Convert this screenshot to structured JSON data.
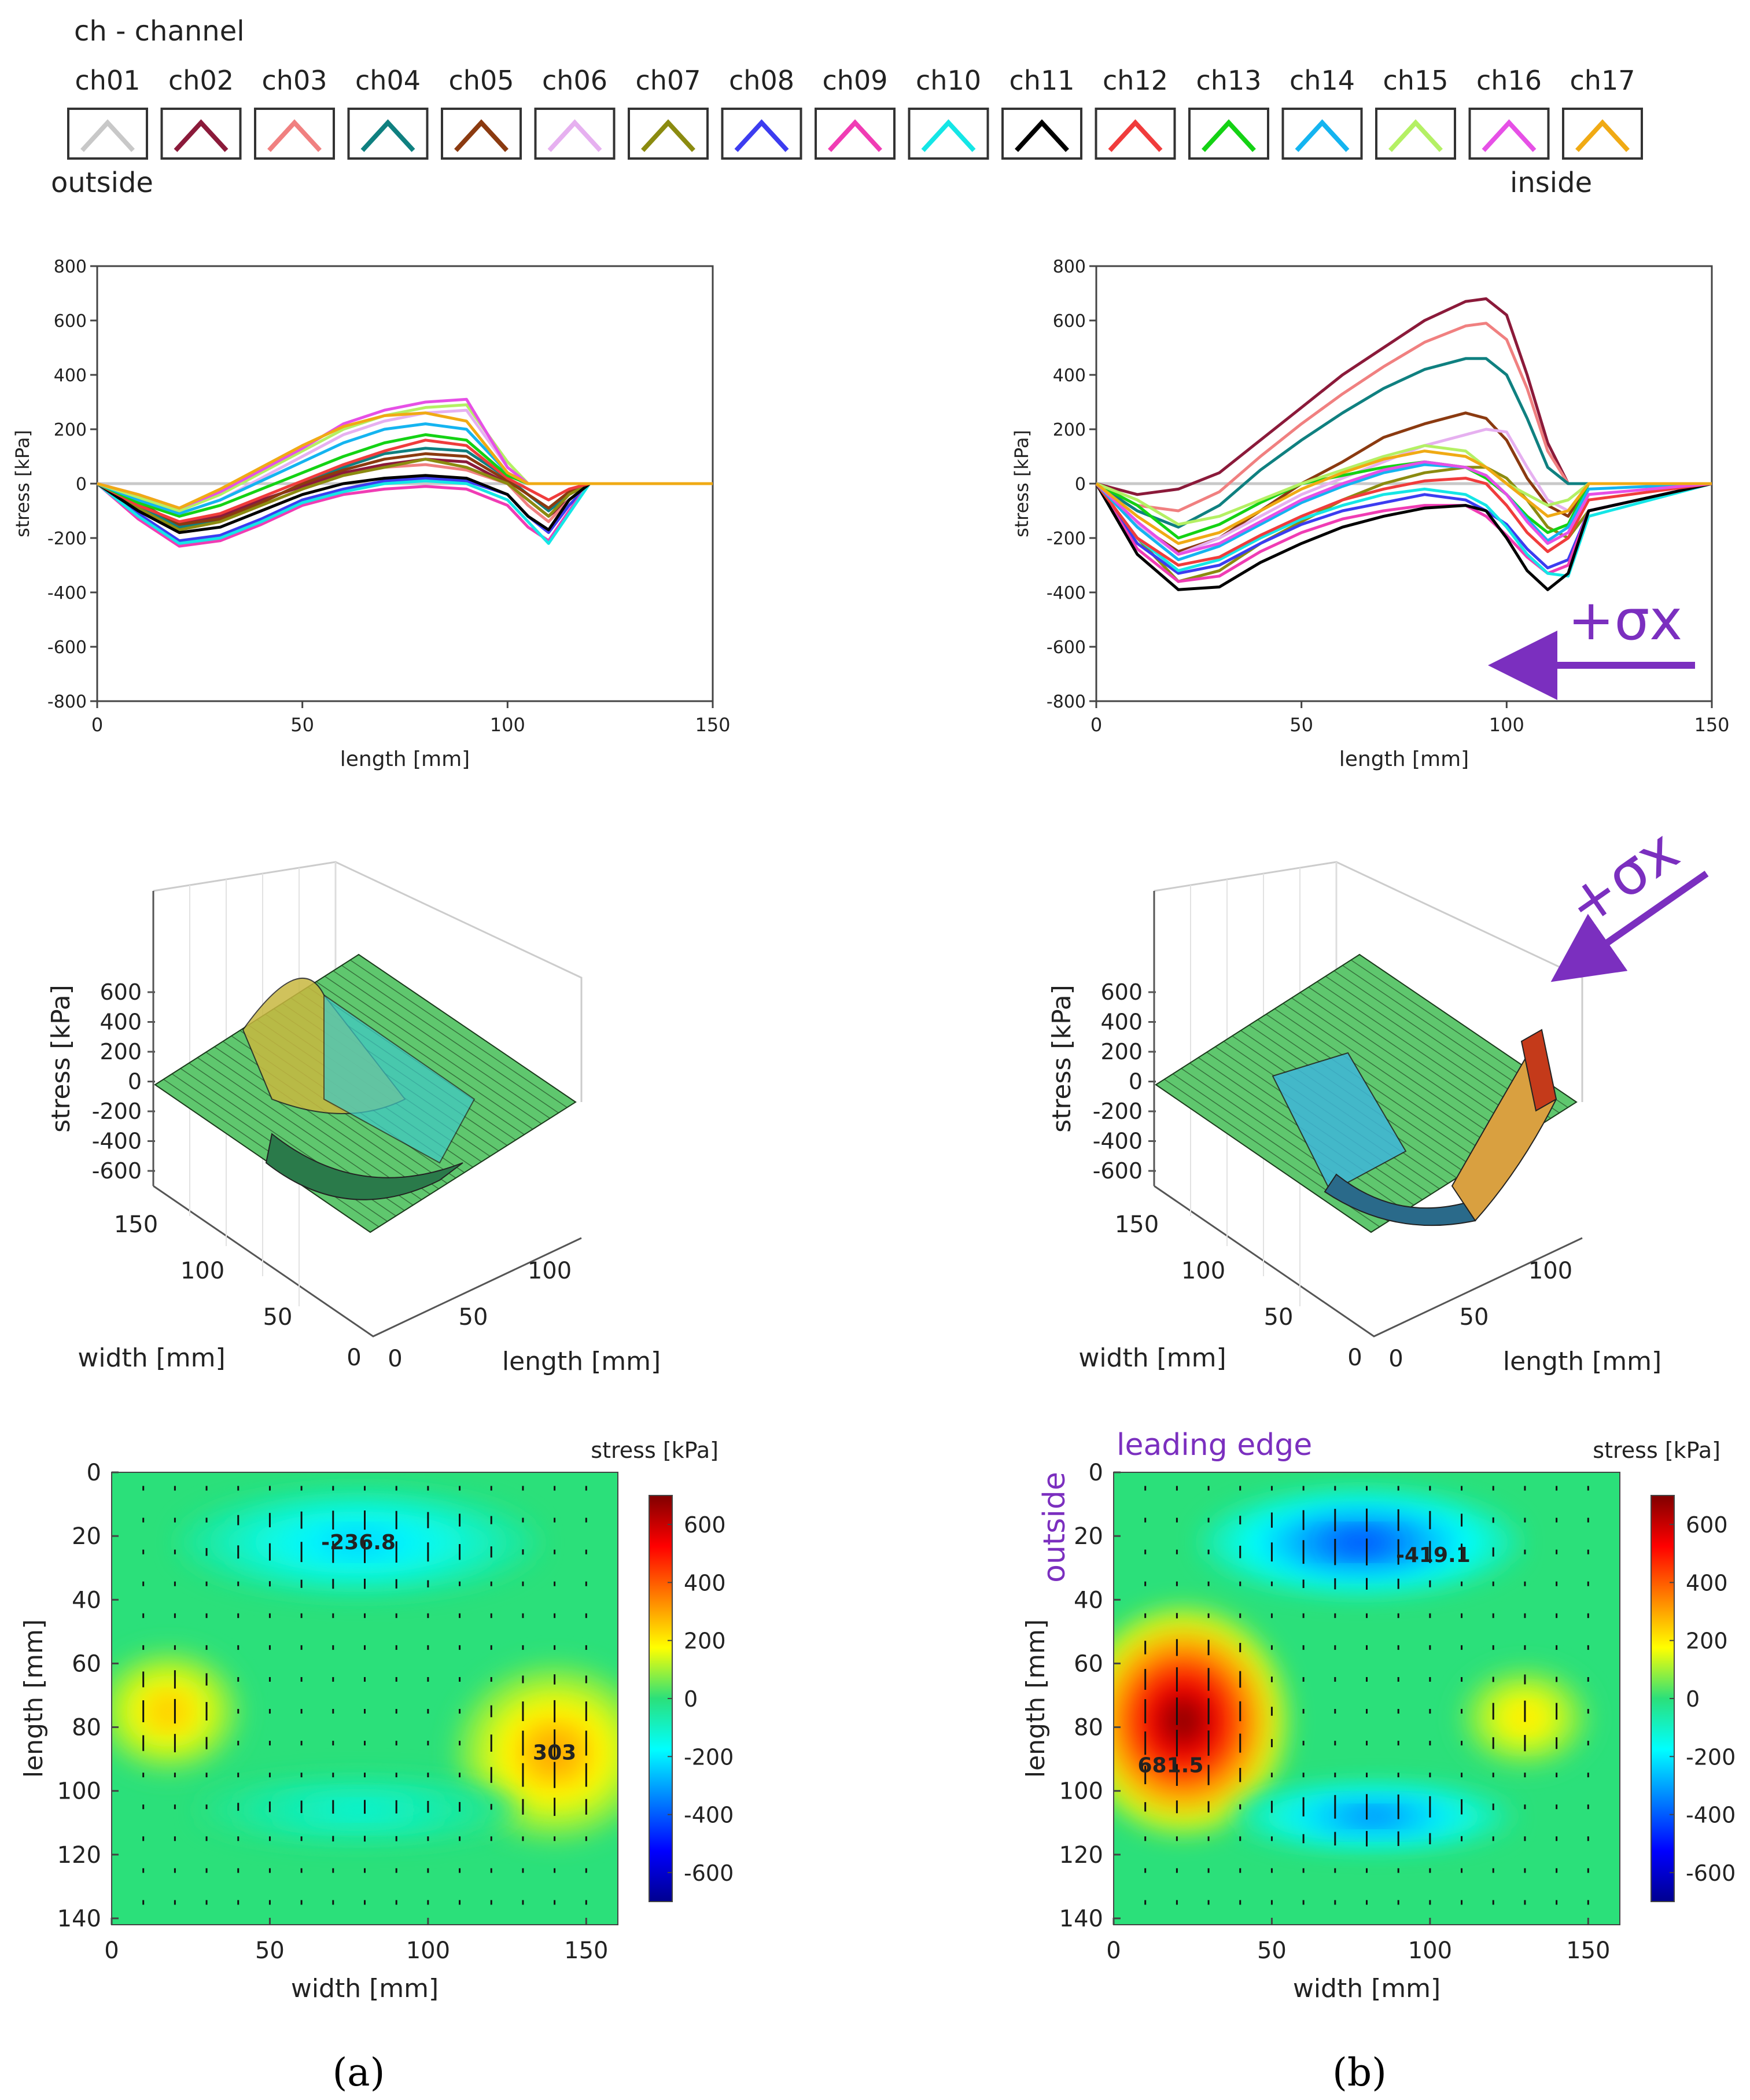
{
  "legend": {
    "title": "ch - channel",
    "outside": "outside",
    "inside": "inside",
    "channels": [
      {
        "label": "ch01",
        "color": "#c8c8c8"
      },
      {
        "label": "ch02",
        "color": "#8b1a3a"
      },
      {
        "label": "ch03",
        "color": "#f08080"
      },
      {
        "label": "ch04",
        "color": "#0f8080"
      },
      {
        "label": "ch05",
        "color": "#8b3a10"
      },
      {
        "label": "ch06",
        "color": "#e6b0f0"
      },
      {
        "label": "ch07",
        "color": "#8b8b10"
      },
      {
        "label": "ch08",
        "color": "#3c3cf0"
      },
      {
        "label": "ch09",
        "color": "#f03cb4"
      },
      {
        "label": "ch10",
        "color": "#14e6e6"
      },
      {
        "label": "ch11",
        "color": "#000000"
      },
      {
        "label": "ch12",
        "color": "#f03c3c"
      },
      {
        "label": "ch13",
        "color": "#14d214"
      },
      {
        "label": "ch14",
        "color": "#14b4f0"
      },
      {
        "label": "ch15",
        "color": "#b4f064"
      },
      {
        "label": "ch16",
        "color": "#e650e6"
      },
      {
        "label": "ch17",
        "color": "#f0aa14"
      }
    ]
  },
  "annotations": {
    "sigma_line": "+σx",
    "sigma_3d": "+σx",
    "leading_edge": "leading edge",
    "outside_vertical": "outside"
  },
  "panel_labels": {
    "a": "(a)",
    "b": "(b)"
  },
  "chart_data": [
    {
      "id": "line_a",
      "type": "line",
      "xlabel": "length [mm]",
      "ylabel": "stress [kPa]",
      "xlim": [
        0,
        150
      ],
      "ylim": [
        -800,
        800
      ],
      "xticks": [
        0,
        50,
        100,
        150
      ],
      "yticks": [
        800,
        600,
        400,
        200,
        0,
        -200,
        -400,
        -600,
        -800
      ],
      "series_note": "one line per channel ch01..ch17, values in kPa at x (mm)",
      "x": [
        0,
        10,
        20,
        30,
        40,
        50,
        60,
        70,
        80,
        90,
        100,
        105,
        110,
        115,
        120,
        150
      ],
      "series": [
        {
          "name": "ch01",
          "values": [
            0,
            0,
            0,
            0,
            0,
            0,
            0,
            0,
            0,
            0,
            0,
            0,
            0,
            0,
            0,
            0
          ]
        },
        {
          "name": "ch02",
          "values": [
            0,
            -80,
            -150,
            -120,
            -60,
            -10,
            40,
            70,
            90,
            80,
            0,
            -60,
            -120,
            -60,
            0,
            0
          ]
        },
        {
          "name": "ch03",
          "values": [
            0,
            -90,
            -170,
            -140,
            -80,
            -20,
            30,
            60,
            70,
            50,
            0,
            -80,
            -140,
            -60,
            0,
            0
          ]
        },
        {
          "name": "ch04",
          "values": [
            0,
            -80,
            -160,
            -130,
            -70,
            0,
            60,
            110,
            130,
            120,
            20,
            -40,
            -100,
            -40,
            0,
            0
          ]
        },
        {
          "name": "ch05",
          "values": [
            0,
            -70,
            -150,
            -130,
            -70,
            0,
            50,
            90,
            110,
            100,
            10,
            -40,
            -90,
            -30,
            0,
            0
          ]
        },
        {
          "name": "ch06",
          "values": [
            0,
            -50,
            -110,
            -60,
            20,
            100,
            180,
            230,
            260,
            270,
            60,
            0,
            0,
            0,
            0,
            0
          ]
        },
        {
          "name": "ch07",
          "values": [
            0,
            -90,
            -170,
            -140,
            -80,
            -20,
            30,
            60,
            90,
            60,
            0,
            -60,
            -120,
            -40,
            0,
            0
          ]
        },
        {
          "name": "ch08",
          "values": [
            0,
            -110,
            -210,
            -190,
            -130,
            -60,
            -20,
            10,
            20,
            10,
            -40,
            -120,
            -180,
            -80,
            0,
            0
          ]
        },
        {
          "name": "ch09",
          "values": [
            0,
            -130,
            -230,
            -210,
            -150,
            -80,
            -40,
            -20,
            -10,
            -20,
            -80,
            -160,
            -210,
            -100,
            0,
            0
          ]
        },
        {
          "name": "ch10",
          "values": [
            0,
            -120,
            -220,
            -200,
            -140,
            -70,
            -30,
            0,
            10,
            0,
            -60,
            -140,
            -220,
            -110,
            0,
            0
          ]
        },
        {
          "name": "ch11",
          "values": [
            0,
            -100,
            -180,
            -160,
            -100,
            -40,
            0,
            20,
            30,
            20,
            -40,
            -120,
            -170,
            -60,
            0,
            0
          ]
        },
        {
          "name": "ch12",
          "values": [
            0,
            -80,
            -140,
            -110,
            -50,
            10,
            70,
            120,
            160,
            140,
            20,
            -20,
            -60,
            -20,
            0,
            0
          ]
        },
        {
          "name": "ch13",
          "values": [
            0,
            -70,
            -120,
            -80,
            -20,
            40,
            100,
            150,
            180,
            160,
            30,
            0,
            0,
            0,
            0,
            0
          ]
        },
        {
          "name": "ch14",
          "values": [
            0,
            -60,
            -110,
            -60,
            10,
            80,
            150,
            200,
            220,
            200,
            40,
            0,
            0,
            0,
            0,
            0
          ]
        },
        {
          "name": "ch15",
          "values": [
            0,
            -50,
            -100,
            -40,
            40,
            120,
            200,
            250,
            280,
            290,
            80,
            0,
            0,
            0,
            0,
            0
          ]
        },
        {
          "name": "ch16",
          "values": [
            0,
            -40,
            -90,
            -30,
            50,
            130,
            220,
            270,
            300,
            310,
            60,
            0,
            0,
            0,
            0,
            0
          ]
        },
        {
          "name": "ch17",
          "values": [
            0,
            -40,
            -90,
            -20,
            60,
            140,
            210,
            250,
            260,
            230,
            40,
            0,
            0,
            0,
            0,
            0
          ]
        }
      ]
    },
    {
      "id": "line_b",
      "type": "line",
      "xlabel": "length [mm]",
      "ylabel": "stress [kPa]",
      "xlim": [
        0,
        150
      ],
      "ylim": [
        -800,
        800
      ],
      "xticks": [
        0,
        50,
        100,
        150
      ],
      "yticks": [
        800,
        600,
        400,
        200,
        0,
        -200,
        -400,
        -600,
        -800
      ],
      "x": [
        0,
        10,
        20,
        30,
        40,
        50,
        60,
        70,
        80,
        90,
        95,
        100,
        105,
        110,
        115,
        120,
        150
      ],
      "series": [
        {
          "name": "ch01",
          "values": [
            0,
            0,
            0,
            0,
            0,
            0,
            0,
            0,
            0,
            0,
            0,
            0,
            0,
            0,
            0,
            0,
            0
          ]
        },
        {
          "name": "ch02",
          "values": [
            0,
            -40,
            -20,
            40,
            160,
            280,
            400,
            500,
            600,
            670,
            680,
            620,
            400,
            150,
            0,
            0,
            0
          ]
        },
        {
          "name": "ch03",
          "values": [
            0,
            -80,
            -100,
            -30,
            100,
            220,
            330,
            430,
            520,
            580,
            590,
            530,
            350,
            120,
            0,
            0,
            0
          ]
        },
        {
          "name": "ch04",
          "values": [
            0,
            -100,
            -160,
            -80,
            50,
            160,
            260,
            350,
            420,
            460,
            460,
            400,
            240,
            60,
            0,
            0,
            0
          ]
        },
        {
          "name": "ch05",
          "values": [
            0,
            -150,
            -250,
            -200,
            -100,
            0,
            80,
            170,
            220,
            260,
            240,
            160,
            20,
            -80,
            -120,
            0,
            0
          ]
        },
        {
          "name": "ch06",
          "values": [
            0,
            -150,
            -260,
            -200,
            -120,
            -40,
            20,
            80,
            140,
            180,
            200,
            190,
            60,
            -60,
            -100,
            0,
            0
          ]
        },
        {
          "name": "ch07",
          "values": [
            0,
            -200,
            -360,
            -320,
            -220,
            -140,
            -60,
            0,
            40,
            60,
            60,
            20,
            -60,
            -160,
            -200,
            -100,
            0
          ]
        },
        {
          "name": "ch08",
          "values": [
            0,
            -220,
            -330,
            -300,
            -220,
            -150,
            -100,
            -70,
            -40,
            -60,
            -100,
            -150,
            -240,
            -310,
            -280,
            -100,
            0
          ]
        },
        {
          "name": "ch09",
          "values": [
            0,
            -240,
            -360,
            -340,
            -250,
            -180,
            -130,
            -100,
            -80,
            -80,
            -120,
            -190,
            -270,
            -330,
            -300,
            -100,
            0
          ]
        },
        {
          "name": "ch10",
          "values": [
            0,
            -200,
            -320,
            -280,
            -200,
            -130,
            -80,
            -40,
            -20,
            -40,
            -80,
            -160,
            -260,
            -330,
            -340,
            -120,
            0
          ]
        },
        {
          "name": "ch11",
          "values": [
            0,
            -260,
            -390,
            -380,
            -290,
            -220,
            -160,
            -120,
            -90,
            -80,
            -100,
            -200,
            -320,
            -390,
            -330,
            -100,
            0
          ]
        },
        {
          "name": "ch12",
          "values": [
            0,
            -200,
            -300,
            -270,
            -190,
            -120,
            -60,
            -20,
            10,
            20,
            0,
            -80,
            -180,
            -250,
            -200,
            -60,
            0
          ]
        },
        {
          "name": "ch13",
          "values": [
            0,
            -80,
            -200,
            -150,
            -70,
            0,
            30,
            60,
            80,
            60,
            20,
            -40,
            -120,
            -180,
            -150,
            0,
            0
          ]
        },
        {
          "name": "ch14",
          "values": [
            0,
            -160,
            -280,
            -230,
            -150,
            -70,
            -10,
            40,
            70,
            60,
            30,
            -40,
            -130,
            -210,
            -160,
            -20,
            0
          ]
        },
        {
          "name": "ch15",
          "values": [
            0,
            -60,
            -150,
            -120,
            -60,
            0,
            50,
            100,
            140,
            120,
            60,
            0,
            -40,
            -80,
            -60,
            0,
            0
          ]
        },
        {
          "name": "ch16",
          "values": [
            0,
            -140,
            -260,
            -220,
            -140,
            -60,
            0,
            50,
            80,
            60,
            30,
            -40,
            -140,
            -220,
            -180,
            -40,
            0
          ]
        },
        {
          "name": "ch17",
          "values": [
            0,
            -120,
            -220,
            -180,
            -100,
            -20,
            40,
            90,
            120,
            100,
            60,
            0,
            -60,
            -120,
            -100,
            0,
            0
          ]
        }
      ]
    },
    {
      "id": "surface_a",
      "type": "surface3d",
      "zlabel": "stress [kPa]",
      "xlabel": "length [mm]",
      "ylabel": "width [mm]",
      "zticks": [
        600,
        400,
        200,
        0,
        -200,
        -400,
        -600
      ],
      "width_ticks": [
        "150",
        "100",
        "50",
        "0"
      ],
      "length_ticks": [
        "0",
        "50",
        "100"
      ]
    },
    {
      "id": "surface_b",
      "type": "surface3d",
      "zlabel": "stress [kPa]",
      "xlabel": "length [mm]",
      "ylabel": "width [mm]",
      "zticks": [
        600,
        400,
        200,
        0,
        -200,
        -400,
        -600
      ],
      "width_ticks": [
        "150",
        "100",
        "50",
        "0"
      ],
      "length_ticks": [
        "0",
        "50",
        "100"
      ]
    },
    {
      "id": "heatmap_a",
      "type": "heatmap",
      "xlabel": "width [mm]",
      "ylabel": "length [mm]",
      "xticks": [
        0,
        50,
        100,
        150
      ],
      "yticks": [
        0,
        20,
        40,
        60,
        80,
        100,
        120,
        140
      ],
      "xlim": [
        0,
        160
      ],
      "ylim": [
        0,
        142
      ],
      "colorbar_title": "stress [kPa]",
      "colorbar_ticks": [
        600,
        400,
        200,
        0,
        -200,
        -400,
        -600
      ],
      "clim": [
        -700,
        700
      ],
      "blobs": [
        {
          "x": 78,
          "y": 22,
          "value": -236.8,
          "rx": 45,
          "ry": 13
        },
        {
          "x": 140,
          "y": 88,
          "value": 303,
          "rx": 25,
          "ry": 22
        },
        {
          "x": 18,
          "y": 75,
          "value": 260,
          "rx": 18,
          "ry": 15
        },
        {
          "x": 78,
          "y": 106,
          "value": -120,
          "rx": 40,
          "ry": 8
        }
      ],
      "labels": [
        {
          "x": 78,
          "y": 22,
          "text": "-236.8"
        },
        {
          "x": 140,
          "y": 88,
          "text": "303"
        }
      ]
    },
    {
      "id": "heatmap_b",
      "type": "heatmap",
      "xlabel": "width [mm]",
      "ylabel": "length [mm]",
      "xticks": [
        0,
        50,
        100,
        150
      ],
      "yticks": [
        0,
        20,
        40,
        60,
        80,
        100,
        120,
        140
      ],
      "xlim": [
        0,
        160
      ],
      "ylim": [
        0,
        142
      ],
      "colorbar_title": "stress [kPa]",
      "colorbar_ticks": [
        600,
        400,
        200,
        0,
        -200,
        -400,
        -600
      ],
      "clim": [
        -700,
        700
      ],
      "blobs": [
        {
          "x": 22,
          "y": 78,
          "value": 681.5,
          "rx": 26,
          "ry": 28
        },
        {
          "x": 78,
          "y": 22,
          "value": -419.1,
          "rx": 40,
          "ry": 13
        },
        {
          "x": 82,
          "y": 108,
          "value": -350,
          "rx": 35,
          "ry": 8
        },
        {
          "x": 130,
          "y": 77,
          "value": 220,
          "rx": 16,
          "ry": 12
        }
      ],
      "labels": [
        {
          "x": 18,
          "y": 92,
          "text": "681.5"
        },
        {
          "x": 101,
          "y": 26,
          "text": "-419.1"
        }
      ]
    }
  ]
}
